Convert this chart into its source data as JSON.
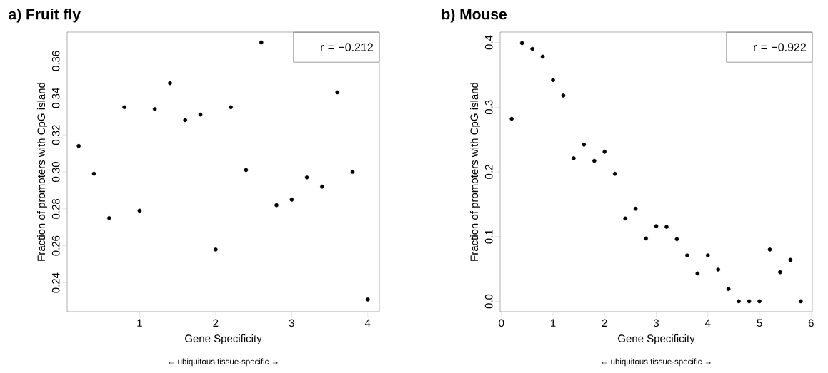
{
  "chart_data": [
    {
      "type": "scatter",
      "title": "a) Fruit fly",
      "xlabel": "Gene Specificity",
      "ylabel": "Fraction of promoters with CpG island",
      "color": "#000000",
      "marker": "circle",
      "x": [
        0.2,
        0.4,
        0.6,
        0.8,
        1.0,
        1.2,
        1.4,
        1.6,
        1.8,
        2.0,
        2.2,
        2.4,
        2.6,
        2.8,
        3.0,
        3.2,
        3.4,
        3.6,
        3.8,
        4.0
      ],
      "values": [
        0.314,
        0.299,
        0.275,
        0.335,
        0.279,
        0.334,
        0.348,
        0.328,
        0.331,
        0.258,
        0.335,
        0.301,
        0.37,
        0.282,
        0.285,
        0.297,
        0.292,
        0.343,
        0.3,
        0.231
      ],
      "xlim": [
        0.048,
        4.152
      ],
      "ylim": [
        0.2244,
        0.3756
      ],
      "xticks": [
        1,
        2,
        3,
        4
      ],
      "yticks": [
        {
          "value": 0.24,
          "label": "0.24"
        },
        {
          "value": 0.26,
          "label": "0.26"
        },
        {
          "value": 0.28,
          "label": "0.28"
        },
        {
          "value": 0.3,
          "label": "0.30"
        },
        {
          "value": 0.32,
          "label": "0.32"
        },
        {
          "value": 0.34,
          "label": "0.34"
        },
        {
          "value": 0.36,
          "label": "0.36"
        }
      ],
      "annotations": [
        "r = −0.212",
        "← ubiquitous    tissue-specific →"
      ]
    },
    {
      "type": "scatter",
      "title": "b) Mouse",
      "xlabel": "Gene Specificity",
      "ylabel": "Fraction of promoters with CpG island",
      "color": "#000000",
      "marker": "circle",
      "x": [
        0.2,
        0.4,
        0.6,
        0.8,
        1.0,
        1.2,
        1.4,
        1.6,
        1.8,
        2.0,
        2.2,
        2.4,
        2.6,
        2.8,
        3.0,
        3.2,
        3.4,
        3.6,
        3.8,
        4.0,
        4.2,
        4.4,
        4.6,
        4.8,
        5.0,
        5.2,
        5.4,
        5.6,
        5.8
      ],
      "values": [
        0.282,
        0.399,
        0.39,
        0.378,
        0.342,
        0.318,
        0.221,
        0.242,
        0.217,
        0.231,
        0.197,
        0.128,
        0.143,
        0.097,
        0.116,
        0.115,
        0.096,
        0.071,
        0.043,
        0.071,
        0.049,
        0.019,
        0,
        0,
        0,
        0.08,
        0.045,
        0.064,
        0
      ],
      "xlim": [
        -0.024,
        6.024
      ],
      "ylim": [
        -0.016,
        0.416
      ],
      "xticks": [
        0,
        1,
        2,
        3,
        4,
        5,
        6
      ],
      "yticks": [
        {
          "value": 0,
          "label": "0.0"
        },
        0.1,
        0.2,
        0.3,
        0.4
      ],
      "annotations": [
        "r = −0.922",
        "← ubiquitous    tissue-specific →"
      ]
    }
  ]
}
